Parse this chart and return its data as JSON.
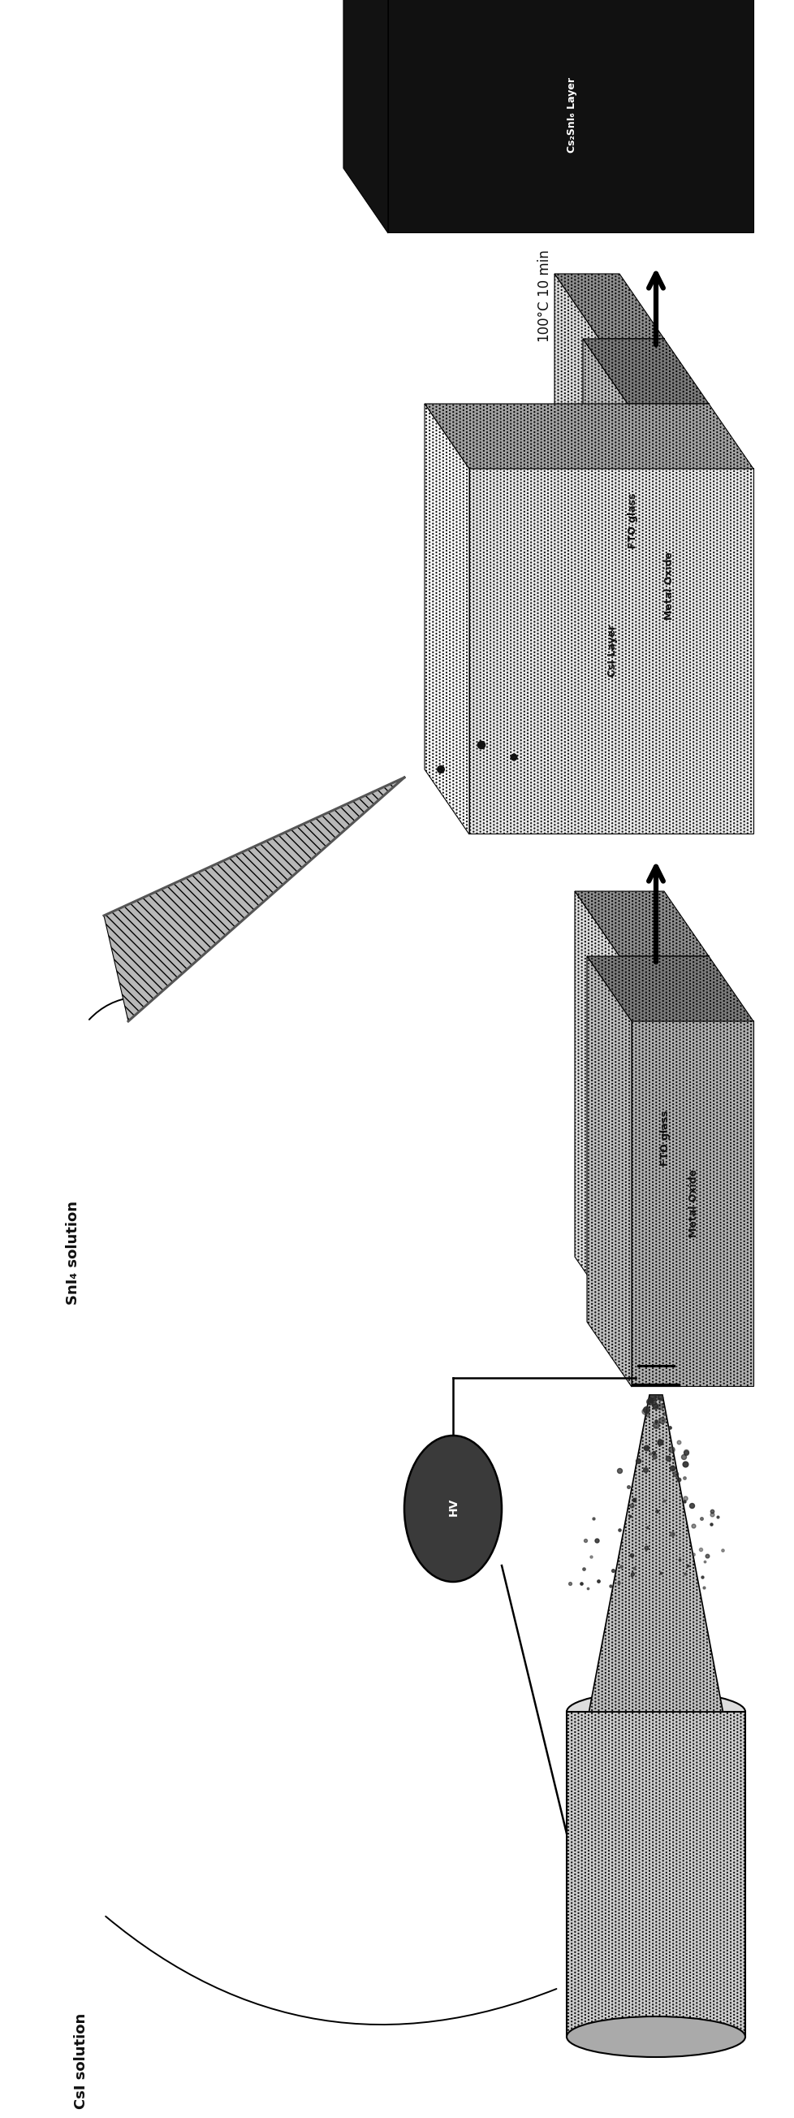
{
  "bg_color": "#ffffff",
  "fig_width": 26.07,
  "fig_height": 9.79,
  "layer_fto": "FTO glass",
  "layer_metal_oxide": "Metal Oxide",
  "layer_csi": "CsI Layer",
  "layer_cs2sni6": "Cs₂SnI₆ Layer",
  "label_csi_solution": "CsI solution",
  "label_sni4_solution": "SnI₄ solution",
  "label_temp": "100°C",
  "label_time": "10 min",
  "label_hv": "HV",
  "col_fto": "#cccccc",
  "col_fto_dark": "#aaaaaa",
  "col_fto_top": "#dddddd",
  "col_metal_oxide": "#b0b0b0",
  "col_metal_oxide_dark": "#909090",
  "col_metal_oxide_top": "#c8c8c8",
  "col_csi": "#e8e8e8",
  "col_csi_dark": "#c8c8c8",
  "col_csi_top": "#f0f0f0",
  "col_cs2sni6": "#111111",
  "col_cs2sni6_dark": "#050505",
  "col_cs2sni6_top": "#333333",
  "col_dark": "#111111",
  "col_white": "#ffffff",
  "col_hatch": "#888888"
}
